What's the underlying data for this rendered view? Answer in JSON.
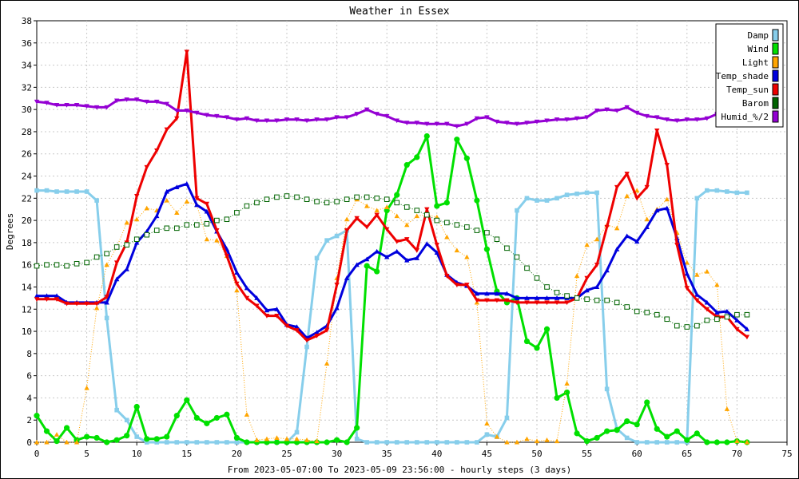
{
  "chart_data": {
    "type": "line",
    "title": "Weather in Essex",
    "xlabel": "From 2023-05-07:00 To 2023-05-09 23:56:00 - hourly steps (3 days)",
    "ylabel": "Degrees",
    "xlim": [
      0,
      75
    ],
    "ylim": [
      0,
      38
    ],
    "xticks": [
      0,
      5,
      10,
      15,
      20,
      25,
      30,
      35,
      40,
      45,
      50,
      55,
      60,
      65,
      70,
      75
    ],
    "yticks": [
      0,
      2,
      4,
      6,
      8,
      10,
      12,
      14,
      16,
      18,
      20,
      22,
      24,
      26,
      28,
      30,
      32,
      34,
      36,
      38
    ],
    "grid": true,
    "legend_position": "top-right",
    "series": [
      {
        "name": "Damp",
        "color": "#87ceeb",
        "style": "solid",
        "marker": "square",
        "x": [
          0,
          1,
          2,
          3,
          4,
          5,
          6,
          7,
          8,
          9,
          10,
          11,
          12,
          13,
          14,
          15,
          16,
          17,
          18,
          19,
          20,
          21,
          22,
          23,
          24,
          25,
          26,
          27,
          28,
          29,
          30,
          31,
          32,
          33,
          34,
          35,
          36,
          37,
          38,
          39,
          40,
          41,
          42,
          43,
          44,
          45,
          46,
          47,
          48,
          49,
          50,
          51,
          52,
          53,
          54,
          55,
          56,
          57,
          58,
          59,
          60,
          61,
          62,
          63,
          64,
          65,
          66,
          67,
          68,
          69,
          70,
          71
        ],
        "y": [
          22.7,
          22.7,
          22.6,
          22.6,
          22.6,
          22.6,
          21.8,
          11.2,
          2.9,
          2,
          0.5,
          0,
          0,
          0,
          0,
          0,
          0,
          0,
          0,
          0,
          0,
          0,
          0,
          0,
          0,
          0,
          0.9,
          8.6,
          16.6,
          18.2,
          18.6,
          19.1,
          0.3,
          0,
          0,
          0,
          0,
          0,
          0,
          0,
          0,
          0,
          0,
          0,
          0,
          0.7,
          0.5,
          2.2,
          20.9,
          22.0,
          21.8,
          21.8,
          22.0,
          22.3,
          22.4,
          22.5,
          22.5,
          4.8,
          1.2,
          0.4,
          0,
          0,
          0,
          0,
          0,
          0,
          22.0,
          22.7,
          22.7,
          22.6,
          22.5,
          22.5
        ]
      },
      {
        "name": "Wind",
        "color": "#00e000",
        "style": "solid",
        "marker": "circle",
        "x": [
          0,
          1,
          2,
          3,
          4,
          5,
          6,
          7,
          8,
          9,
          10,
          11,
          12,
          13,
          14,
          15,
          16,
          17,
          18,
          19,
          20,
          21,
          22,
          23,
          24,
          25,
          26,
          27,
          28,
          29,
          30,
          31,
          32,
          33,
          34,
          35,
          36,
          37,
          38,
          39,
          40,
          41,
          42,
          43,
          44,
          45,
          46,
          47,
          48,
          49,
          50,
          51,
          52,
          53,
          54,
          55,
          56,
          57,
          58,
          59,
          60,
          61,
          62,
          63,
          64,
          65,
          66,
          67,
          68,
          69,
          70,
          71
        ],
        "y": [
          2.4,
          1,
          0.1,
          1.3,
          0.2,
          0.5,
          0.4,
          0,
          0.2,
          0.6,
          3.2,
          0.3,
          0.3,
          0.5,
          2.4,
          3.8,
          2.2,
          1.7,
          2.2,
          2.5,
          0.4,
          0,
          0,
          0,
          0,
          0,
          0,
          0,
          0,
          0,
          0.2,
          0,
          1.3,
          15.9,
          15.4,
          20.9,
          22.3,
          25.0,
          25.7,
          27.6,
          21.3,
          21.6,
          27.3,
          25.6,
          21.8,
          17.4,
          13.6,
          12.6,
          13.0,
          9.1,
          8.5,
          10.2,
          4.0,
          4.5,
          0.8,
          0.1,
          0.4,
          1.0,
          1.1,
          1.9,
          1.6,
          3.6,
          1.2,
          0.5,
          1.0,
          0.2,
          0.8,
          0,
          0,
          0,
          0.1,
          0
        ]
      },
      {
        "name": "Light",
        "color": "#ffa500",
        "style": "dotted",
        "marker": "triangle-up",
        "x": [
          0,
          1,
          2,
          3,
          4,
          5,
          6,
          7,
          8,
          9,
          10,
          11,
          12,
          13,
          14,
          15,
          16,
          17,
          18,
          19,
          20,
          21,
          22,
          23,
          24,
          25,
          26,
          27,
          28,
          29,
          30,
          31,
          32,
          33,
          34,
          35,
          36,
          37,
          38,
          39,
          40,
          41,
          42,
          43,
          44,
          45,
          46,
          47,
          48,
          49,
          50,
          51,
          52,
          53,
          54,
          55,
          56,
          57,
          58,
          59,
          60,
          61,
          62,
          63,
          64,
          65,
          66,
          67,
          68,
          69,
          70,
          71
        ],
        "y": [
          0,
          0,
          0.7,
          0,
          0,
          4.9,
          12.1,
          16,
          17.6,
          19.8,
          20.1,
          21.1,
          20.9,
          21.8,
          20.7,
          21.7,
          21.4,
          18.3,
          18.2,
          16.8,
          13.7,
          2.5,
          0.2,
          0.3,
          0.4,
          0.3,
          0.3,
          0.2,
          0.1,
          7.1,
          14.8,
          20.1,
          21.9,
          21.3,
          20.9,
          21.2,
          20.4,
          19.6,
          20.4,
          20.5,
          20.3,
          18.5,
          17.3,
          16.7,
          12.6,
          1.7,
          0.5,
          0,
          0,
          0.3,
          0.1,
          0.2,
          0.1,
          5.3,
          15,
          17.8,
          18.3,
          19.6,
          19.3,
          22.2,
          22.7,
          20.1,
          21,
          21.9,
          18.9,
          16.2,
          15.1,
          15.4,
          14.2,
          3.0,
          0.1,
          0
        ]
      },
      {
        "name": "Temp_shade",
        "color": "#0000dd",
        "style": "solid",
        "marker": "triangle-up",
        "x": [
          0,
          1,
          2,
          3,
          4,
          5,
          6,
          7,
          8,
          9,
          10,
          11,
          12,
          13,
          14,
          15,
          16,
          17,
          18,
          19,
          20,
          21,
          22,
          23,
          24,
          25,
          26,
          27,
          28,
          29,
          30,
          31,
          32,
          33,
          34,
          35,
          36,
          37,
          38,
          39,
          40,
          41,
          42,
          43,
          44,
          45,
          46,
          47,
          48,
          49,
          50,
          51,
          52,
          53,
          54,
          55,
          56,
          57,
          58,
          59,
          60,
          61,
          62,
          63,
          64,
          65,
          66,
          67,
          68,
          69,
          70,
          71
        ],
        "y": [
          13.2,
          13.2,
          13.2,
          12.6,
          12.6,
          12.6,
          12.6,
          12.6,
          14.7,
          15.6,
          18.0,
          19.0,
          20.4,
          22.6,
          23.0,
          23.3,
          21.4,
          20.8,
          19.0,
          17.4,
          15.3,
          13.9,
          13.0,
          11.9,
          12.0,
          10.6,
          10.4,
          9.4,
          9.9,
          10.5,
          12.1,
          14.8,
          16.0,
          16.5,
          17.2,
          16.7,
          17.2,
          16.4,
          16.6,
          17.9,
          17.1,
          15.1,
          14.4,
          14.1,
          13.4,
          13.4,
          13.4,
          13.4,
          13.0,
          13.0,
          13.0,
          13.0,
          13.0,
          13.0,
          13.0,
          13.7,
          14.0,
          15.5,
          17.4,
          18.6,
          18.1,
          19.4,
          20.9,
          21.1,
          18.4,
          15.2,
          13.3,
          12.6,
          11.7,
          11.8,
          11.0,
          10.2
        ]
      },
      {
        "name": "Temp_sun",
        "color": "#ee0000",
        "style": "solid",
        "marker": "triangle-down",
        "x": [
          0,
          1,
          2,
          3,
          4,
          5,
          6,
          7,
          8,
          9,
          10,
          11,
          12,
          13,
          14,
          15,
          16,
          17,
          18,
          19,
          20,
          21,
          22,
          23,
          24,
          25,
          26,
          27,
          28,
          29,
          30,
          31,
          32,
          33,
          34,
          35,
          36,
          37,
          38,
          39,
          40,
          41,
          42,
          43,
          44,
          45,
          46,
          47,
          48,
          49,
          50,
          51,
          52,
          53,
          54,
          55,
          56,
          57,
          58,
          59,
          60,
          61,
          62,
          63,
          64,
          65,
          66,
          67,
          68,
          69,
          70,
          71
        ],
        "y": [
          12.9,
          12.9,
          12.9,
          12.5,
          12.5,
          12.5,
          12.5,
          13.1,
          16.2,
          18.0,
          22.2,
          24.8,
          26.3,
          28.2,
          29.2,
          35.2,
          22.0,
          21.5,
          19.1,
          16.8,
          14.3,
          13.0,
          12.3,
          11.4,
          11.4,
          10.5,
          10.1,
          9.2,
          9.6,
          10.1,
          14.2,
          19.1,
          20.2,
          19.4,
          20.5,
          19.2,
          18.1,
          18.3,
          17.3,
          21.0,
          17.8,
          15.0,
          14.2,
          14.2,
          12.8,
          12.8,
          12.8,
          12.8,
          12.6,
          12.6,
          12.6,
          12.6,
          12.6,
          12.6,
          13.0,
          14.8,
          16.0,
          19.4,
          23.0,
          24.2,
          22.0,
          23.0,
          28.1,
          25.0,
          17.8,
          13.9,
          12.8,
          12.0,
          11.3,
          11.3,
          10.2,
          9.5
        ]
      },
      {
        "name": "Barom",
        "color": "#006400",
        "style": "dotted",
        "marker": "square-hollow",
        "x": [
          0,
          1,
          2,
          3,
          4,
          5,
          6,
          7,
          8,
          9,
          10,
          11,
          12,
          13,
          14,
          15,
          16,
          17,
          18,
          19,
          20,
          21,
          22,
          23,
          24,
          25,
          26,
          27,
          28,
          29,
          30,
          31,
          32,
          33,
          34,
          35,
          36,
          37,
          38,
          39,
          40,
          41,
          42,
          43,
          44,
          45,
          46,
          47,
          48,
          49,
          50,
          51,
          52,
          53,
          54,
          55,
          56,
          57,
          58,
          59,
          60,
          61,
          62,
          63,
          64,
          65,
          66,
          67,
          68,
          69,
          70,
          71
        ],
        "y": [
          15.9,
          16.0,
          16.0,
          15.9,
          16.1,
          16.2,
          16.7,
          17.0,
          17.6,
          17.8,
          18.3,
          18.7,
          19.1,
          19.3,
          19.3,
          19.6,
          19.6,
          19.7,
          20.0,
          20.1,
          20.7,
          21.3,
          21.6,
          21.9,
          22.1,
          22.2,
          22.1,
          21.9,
          21.7,
          21.6,
          21.7,
          21.9,
          22.1,
          22.1,
          22.0,
          21.9,
          21.6,
          21.2,
          20.9,
          20.5,
          20.0,
          19.8,
          19.6,
          19.4,
          19.1,
          18.9,
          18.3,
          17.5,
          16.7,
          15.7,
          14.8,
          14.0,
          13.5,
          13.2,
          13.0,
          12.9,
          12.8,
          12.8,
          12.6,
          12.2,
          11.8,
          11.7,
          11.5,
          11.1,
          10.5,
          10.4,
          10.5,
          11.0,
          11.1,
          11.3,
          11.5,
          11.5
        ]
      },
      {
        "name": "Humid_%/2",
        "color": "#9400d3",
        "style": "solid",
        "marker": "triangle-down",
        "x": [
          0,
          1,
          2,
          3,
          4,
          5,
          6,
          7,
          8,
          9,
          10,
          11,
          12,
          13,
          14,
          15,
          16,
          17,
          18,
          19,
          20,
          21,
          22,
          23,
          24,
          25,
          26,
          27,
          28,
          29,
          30,
          31,
          32,
          33,
          34,
          35,
          36,
          37,
          38,
          39,
          40,
          41,
          42,
          43,
          44,
          45,
          46,
          47,
          48,
          49,
          50,
          51,
          52,
          53,
          54,
          55,
          56,
          57,
          58,
          59,
          60,
          61,
          62,
          63,
          64,
          65,
          66,
          67,
          68,
          69,
          70,
          71
        ],
        "y": [
          30.7,
          30.6,
          30.4,
          30.4,
          30.4,
          30.3,
          30.2,
          30.2,
          30.8,
          30.9,
          30.9,
          30.7,
          30.7,
          30.5,
          29.9,
          29.9,
          29.7,
          29.5,
          29.4,
          29.3,
          29.1,
          29.2,
          29.0,
          29.0,
          29.0,
          29.1,
          29.1,
          29.0,
          29.1,
          29.1,
          29.3,
          29.3,
          29.6,
          30.0,
          29.6,
          29.4,
          29.0,
          28.8,
          28.8,
          28.7,
          28.7,
          28.7,
          28.5,
          28.7,
          29.2,
          29.3,
          28.9,
          28.8,
          28.7,
          28.8,
          28.9,
          29.0,
          29.1,
          29.1,
          29.2,
          29.3,
          29.9,
          30.0,
          29.9,
          30.2,
          29.7,
          29.4,
          29.3,
          29.1,
          29.0,
          29.1,
          29.1,
          29.2,
          29.6,
          29.2,
          null,
          null
        ]
      }
    ]
  }
}
